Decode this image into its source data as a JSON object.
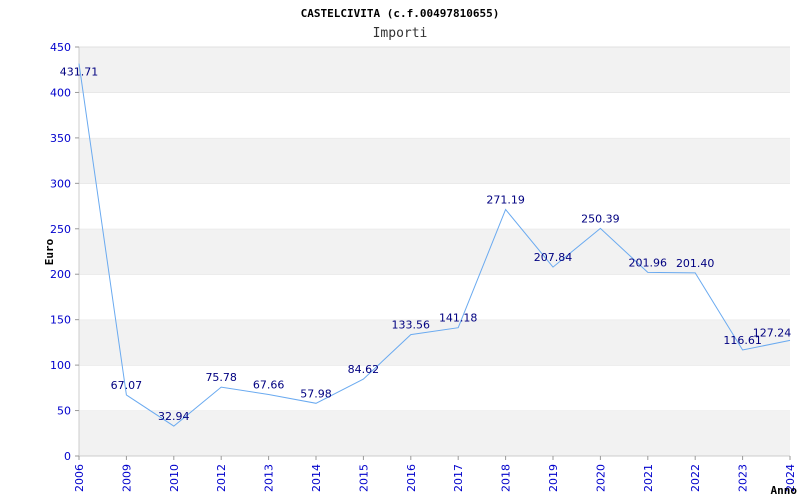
{
  "chart_data": {
    "type": "line",
    "title": "CASTELCIVITA (c.f.00497810655)",
    "subtitle": "Importi",
    "xlabel": "Anno",
    "ylabel": "Euro",
    "ylim": [
      0,
      450
    ],
    "yticks": [
      0,
      50,
      100,
      150,
      200,
      250,
      300,
      350,
      400,
      450
    ],
    "grid": "horizontal bands",
    "categories": [
      "2006",
      "2009",
      "2010",
      "2012",
      "2013",
      "2014",
      "2015",
      "2016",
      "2017",
      "2018",
      "2019",
      "2020",
      "2021",
      "2022",
      "2023",
      "2024"
    ],
    "values": [
      431.71,
      67.07,
      32.94,
      75.78,
      67.66,
      57.98,
      84.62,
      133.56,
      141.18,
      271.19,
      207.84,
      250.39,
      201.96,
      201.4,
      116.61,
      127.24
    ],
    "labels": [
      "431.71",
      "67.07",
      "32.94",
      "75.78",
      "67.66",
      "57.98",
      "84.62",
      "133.56",
      "141.18",
      "271.19",
      "207.84",
      "250.39",
      "201.96",
      "201.40",
      "116.61",
      "127.24"
    ],
    "colors": {
      "line": "#6aaaf0",
      "tick": "#0000cc",
      "label": "#000080",
      "band": "#f2f2f2"
    }
  }
}
